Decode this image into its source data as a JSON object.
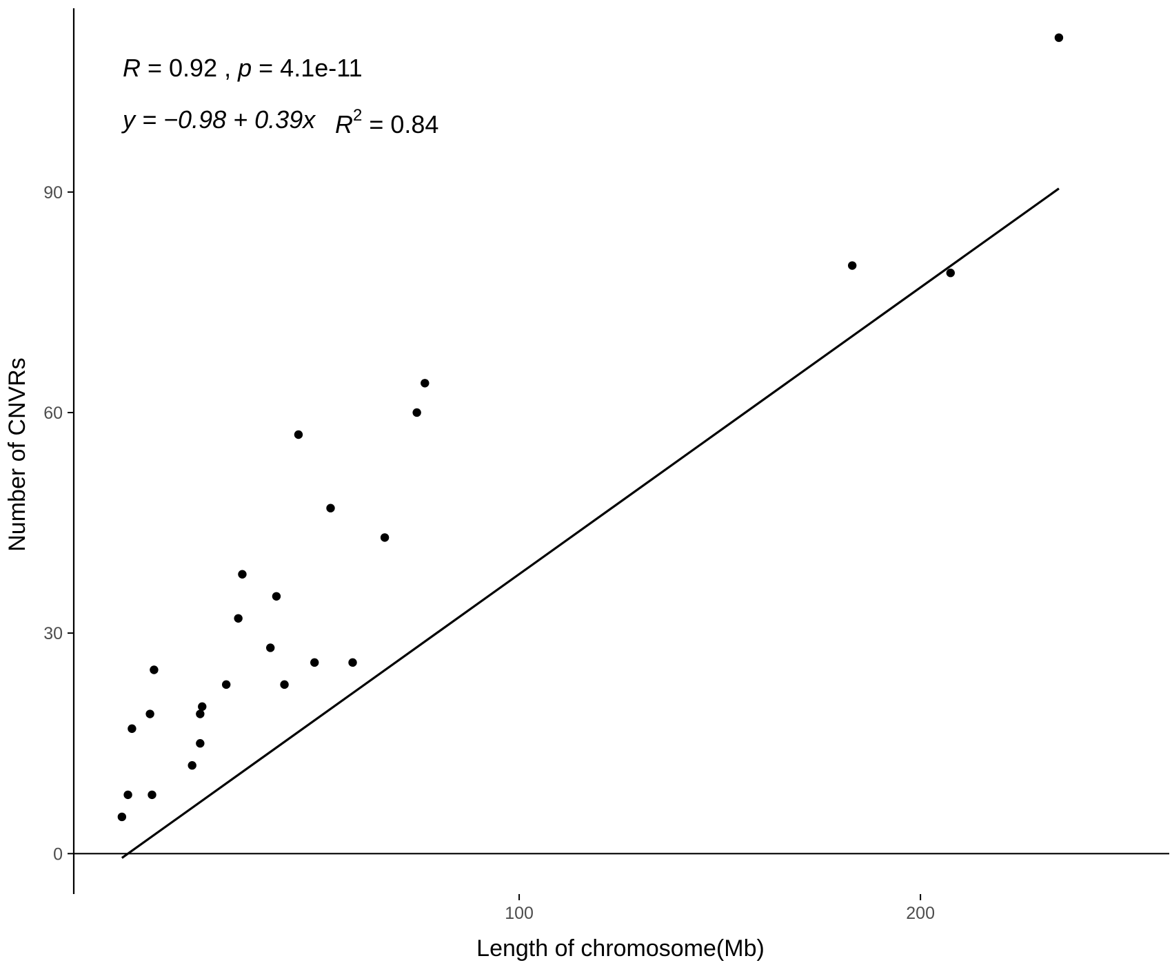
{
  "chart_data": {
    "type": "scatter",
    "xlabel": "Length of chromosome(Mb)",
    "ylabel": "Number of CNVRs",
    "xlim": [
      -11,
      262
    ],
    "ylim": [
      -5.5,
      115
    ],
    "x_ticks": [
      100,
      200
    ],
    "y_ticks": [
      0,
      30,
      60,
      90
    ],
    "grid": false,
    "annotation": {
      "line1": {
        "r_symbol": "R",
        "r_text": " = 0.92 , ",
        "p_symbol": "p",
        "p_text": " = 4.1e-11"
      },
      "line2": {
        "equation": "y = −0.98 + 0.39x",
        "r2_symbol": "R",
        "r2_sup": "2",
        "r2_text": " = 0.84"
      }
    },
    "regression": {
      "intercept": -0.98,
      "slope": 0.39,
      "x_range": [
        1,
        234.5
      ]
    },
    "points": [
      {
        "x": 1,
        "y": 5
      },
      {
        "x": 2.5,
        "y": 8
      },
      {
        "x": 3.5,
        "y": 17
      },
      {
        "x": 8,
        "y": 19
      },
      {
        "x": 8.5,
        "y": 8
      },
      {
        "x": 9,
        "y": 25
      },
      {
        "x": 18.5,
        "y": 12
      },
      {
        "x": 20.5,
        "y": 15
      },
      {
        "x": 20.5,
        "y": 19
      },
      {
        "x": 21,
        "y": 20
      },
      {
        "x": 27,
        "y": 23
      },
      {
        "x": 30,
        "y": 32
      },
      {
        "x": 31,
        "y": 38
      },
      {
        "x": 38,
        "y": 28
      },
      {
        "x": 39.5,
        "y": 35
      },
      {
        "x": 41.5,
        "y": 23
      },
      {
        "x": 45,
        "y": 57
      },
      {
        "x": 49,
        "y": 26
      },
      {
        "x": 53,
        "y": 47
      },
      {
        "x": 58.5,
        "y": 26
      },
      {
        "x": 66.5,
        "y": 43
      },
      {
        "x": 74.5,
        "y": 60
      },
      {
        "x": 76.5,
        "y": 64
      },
      {
        "x": 183,
        "y": 80
      },
      {
        "x": 207.5,
        "y": 79
      },
      {
        "x": 234.5,
        "y": 111
      }
    ]
  }
}
